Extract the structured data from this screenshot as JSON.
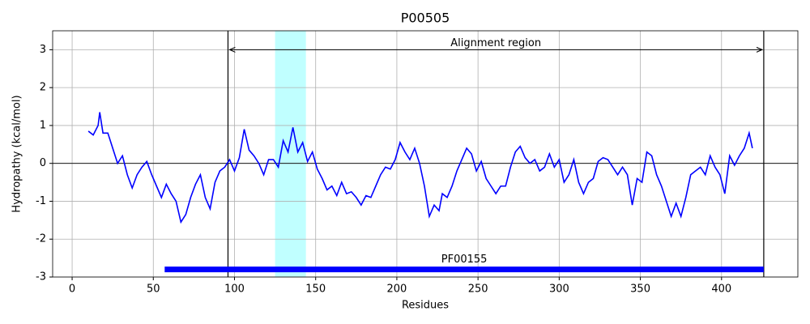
{
  "chart_data": {
    "type": "line",
    "title": "P00505",
    "x_label": "Residues",
    "y_label": "Hydropathy (kcal/mol)",
    "x": [
      10,
      13,
      16,
      17,
      19,
      22,
      25,
      28,
      31,
      34,
      37,
      40,
      43,
      46,
      49,
      52,
      55,
      58,
      61,
      64,
      67,
      70,
      73,
      76,
      79,
      82,
      85,
      88,
      91,
      94,
      97,
      100,
      103,
      106,
      109,
      112,
      115,
      118,
      121,
      124,
      127,
      130,
      133,
      136,
      139,
      142,
      145,
      148,
      151,
      154,
      157,
      160,
      163,
      166,
      169,
      172,
      175,
      178,
      181,
      184,
      187,
      190,
      193,
      196,
      199,
      202,
      205,
      208,
      211,
      214,
      217,
      220,
      223,
      226,
      228,
      231,
      234,
      237,
      240,
      243,
      246,
      249,
      252,
      255,
      258,
      261,
      264,
      267,
      270,
      273,
      276,
      279,
      282,
      285,
      288,
      291,
      294,
      297,
      300,
      303,
      306,
      309,
      312,
      315,
      318,
      321,
      324,
      327,
      330,
      333,
      336,
      339,
      342,
      345,
      348,
      351,
      354,
      357,
      360,
      363,
      366,
      369,
      372,
      375,
      378,
      381,
      384,
      387,
      390,
      393,
      396,
      399,
      402,
      405,
      408,
      411,
      414,
      417,
      419
    ],
    "series": [
      {
        "name": "Hydropathy",
        "color": "#0000ff",
        "values": [
          0.85,
          0.75,
          1.0,
          1.35,
          0.8,
          0.8,
          0.4,
          0.0,
          0.2,
          -0.3,
          -0.65,
          -0.3,
          -0.1,
          0.05,
          -0.3,
          -0.6,
          -0.9,
          -0.55,
          -0.8,
          -1.0,
          -1.55,
          -1.35,
          -0.9,
          -0.55,
          -0.3,
          -0.9,
          -1.2,
          -0.5,
          -0.2,
          -0.1,
          0.1,
          -0.2,
          0.15,
          0.9,
          0.35,
          0.2,
          0.0,
          -0.3,
          0.1,
          0.1,
          -0.1,
          0.6,
          0.3,
          0.95,
          0.3,
          0.55,
          0.05,
          0.3,
          -0.15,
          -0.4,
          -0.7,
          -0.6,
          -0.85,
          -0.5,
          -0.8,
          -0.75,
          -0.9,
          -1.1,
          -0.85,
          -0.9,
          -0.6,
          -0.3,
          -0.1,
          -0.15,
          0.1,
          0.55,
          0.3,
          0.1,
          0.4,
          0.0,
          -0.6,
          -1.4,
          -1.1,
          -1.25,
          -0.8,
          -0.9,
          -0.6,
          -0.2,
          0.1,
          0.4,
          0.25,
          -0.2,
          0.05,
          -0.4,
          -0.6,
          -0.8,
          -0.6,
          -0.6,
          -0.1,
          0.3,
          0.45,
          0.15,
          0.0,
          0.1,
          -0.2,
          -0.1,
          0.25,
          -0.1,
          0.1,
          -0.5,
          -0.3,
          0.1,
          -0.5,
          -0.8,
          -0.5,
          -0.4,
          0.05,
          0.15,
          0.1,
          -0.1,
          -0.3,
          -0.1,
          -0.3,
          -1.1,
          -0.4,
          -0.5,
          0.3,
          0.2,
          -0.3,
          -0.6,
          -1.0,
          -1.4,
          -1.05,
          -1.4,
          -0.9,
          -0.3,
          -0.2,
          -0.1,
          -0.3,
          0.2,
          -0.1,
          -0.3,
          -0.8,
          0.2,
          -0.05,
          0.2,
          0.4,
          0.8,
          0.4
        ]
      }
    ],
    "xlim": [
      -12,
      447
    ],
    "ylim": [
      -3,
      3.5
    ],
    "xticks": [
      0,
      50,
      100,
      150,
      200,
      250,
      300,
      350,
      400
    ],
    "yticks": [
      -3,
      -2,
      -1,
      0,
      1,
      2,
      3
    ],
    "grid": true,
    "hline": 0,
    "alignment_region": {
      "label": "Alignment region",
      "start": 96,
      "end": 426,
      "y": 3
    },
    "highlight": {
      "start": 125,
      "end": 144,
      "color": "#c0ffff"
    },
    "domain": {
      "label": "PF00155",
      "start": 57,
      "end": 426,
      "y": -2.8,
      "color": "#0000ff"
    }
  }
}
